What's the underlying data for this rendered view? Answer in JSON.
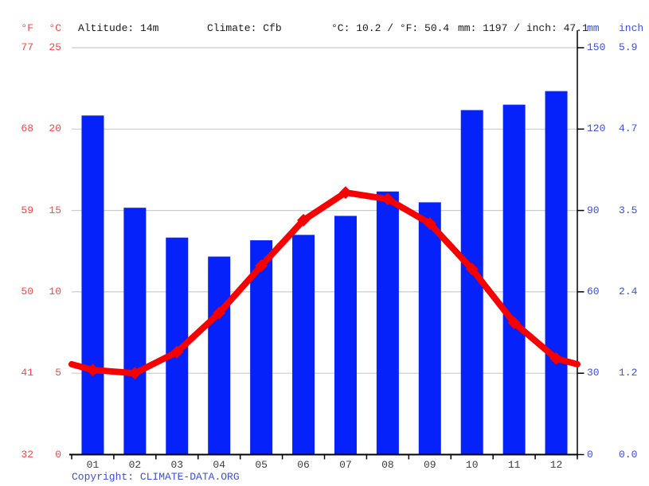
{
  "header": {
    "f_label": "°F",
    "c_label": "°C",
    "altitude": "Altitude: 14m",
    "climate": "Climate: Cfb",
    "avg_temperature": "°C: 10.2 / °F: 50.4",
    "precipitation_total": "mm: 1197 / inch: 47.1",
    "mm_label": "mm",
    "inch_label": "inch"
  },
  "axes": {
    "left_fahrenheit": [
      "77",
      "68",
      "59",
      "50",
      "41",
      "32"
    ],
    "left_celsius": [
      "25",
      "20",
      "15",
      "10",
      "5",
      "0"
    ],
    "right_mm": [
      "150",
      "120",
      "90",
      "60",
      "30",
      "0"
    ],
    "right_inch": [
      "5.9",
      "4.7",
      "3.5",
      "2.4",
      "1.2",
      "0.0"
    ]
  },
  "chart_data": {
    "type": "bar",
    "subtype": "climate-chart (precipitation bars + temperature line)",
    "categories": [
      "01",
      "02",
      "03",
      "04",
      "05",
      "06",
      "07",
      "08",
      "09",
      "10",
      "11",
      "12"
    ],
    "series": [
      {
        "name": "precipitation_mm",
        "type": "bar",
        "values": [
          125,
          91,
          80,
          73,
          79,
          81,
          88,
          97,
          93,
          127,
          129,
          134
        ]
      },
      {
        "name": "temperature_c",
        "type": "line",
        "values": [
          5.2,
          5.0,
          6.3,
          8.7,
          11.6,
          14.4,
          16.1,
          15.7,
          14.2,
          11.4,
          8.1,
          5.9
        ]
      }
    ],
    "y_left_axis": {
      "unit": "°C",
      "min": 0,
      "max": 25,
      "ticks": [
        0,
        5,
        10,
        15,
        20,
        25
      ]
    },
    "y_left_axis_secondary": {
      "unit": "°F",
      "ticks": [
        32,
        41,
        50,
        59,
        68,
        77
      ]
    },
    "y_right_axis": {
      "unit": "mm",
      "min": 0,
      "max": 150,
      "ticks": [
        0,
        30,
        60,
        90,
        120,
        150
      ]
    },
    "y_right_axis_secondary": {
      "unit": "inch",
      "ticks": [
        0.0,
        1.2,
        2.4,
        3.5,
        4.7,
        5.9
      ]
    },
    "grid": true,
    "legend": "none",
    "annual_mean_temp_c": 10.2,
    "annual_precipitation_mm": 1197
  },
  "colors": {
    "bar_blue": "#0622fa",
    "line_red": "#f80000",
    "red_axis_text": "#f94646",
    "blue_axis_text": "#3c50d8",
    "gridline": "#cccccc",
    "axis_black": "#000000"
  },
  "footer": {
    "copyright_prefix": "Copyright: ",
    "copyright_link": "CLIMATE-DATA.ORG"
  }
}
